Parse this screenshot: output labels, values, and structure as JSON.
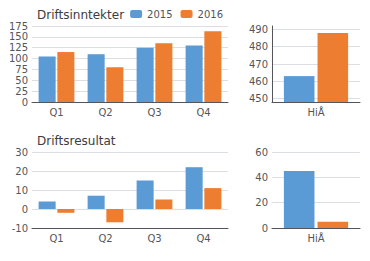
{
  "chart_data": [
    {
      "type": "bar",
      "title": "Driftsinntekter",
      "categories": [
        "Q1",
        "Q2",
        "Q3",
        "Q4"
      ],
      "series": [
        {
          "name": "2015",
          "color": "#5B9BD5",
          "values": [
            105,
            110,
            125,
            130
          ]
        },
        {
          "name": "2016",
          "color": "#ED7D31",
          "values": [
            115,
            80,
            135,
            163
          ]
        }
      ],
      "ylim": [
        0,
        175
      ],
      "yticks": [
        0,
        25,
        50,
        75,
        100,
        125,
        150,
        175
      ],
      "grid": true,
      "legend": "upper right"
    },
    {
      "type": "bar",
      "categories": [
        "HiÅ"
      ],
      "series": [
        {
          "color": "#5B9BD5",
          "values": [
            463
          ]
        },
        {
          "color": "#ED7D31",
          "values": [
            488
          ]
        }
      ],
      "ylim": [
        448,
        492
      ],
      "yticks": [
        450,
        460,
        470,
        480,
        490
      ],
      "grid": true
    },
    {
      "type": "bar",
      "title": "Driftsresultat",
      "categories": [
        "Q1",
        "Q2",
        "Q3",
        "Q4"
      ],
      "series": [
        {
          "color": "#5B9BD5",
          "values": [
            4,
            7,
            15,
            22
          ]
        },
        {
          "color": "#ED7D31",
          "values": [
            -2,
            -7,
            5,
            11
          ]
        }
      ],
      "ylim": [
        -10,
        30
      ],
      "yticks": [
        -10,
        0,
        10,
        20,
        30
      ],
      "grid": true
    },
    {
      "type": "bar",
      "categories": [
        "HiÅ"
      ],
      "series": [
        {
          "color": "#5B9BD5",
          "values": [
            45
          ]
        },
        {
          "color": "#ED7D31",
          "values": [
            5
          ]
        }
      ],
      "ylim": [
        0,
        60
      ],
      "yticks": [
        0,
        20,
        40,
        60
      ],
      "grid": true
    }
  ]
}
